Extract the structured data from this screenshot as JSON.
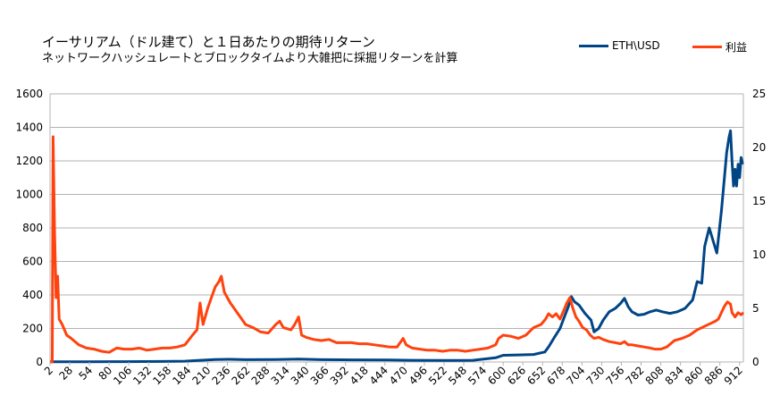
{
  "chart_data": {
    "type": "line",
    "title": "イーサリアム（ドル建て）と１日あたりの期待リターン",
    "subtitle": "ネットワークハッシュレートとブロックタイムより大雑把に採掘リターンを計算",
    "x_tick_labels": [
      "2",
      "28",
      "54",
      "80",
      "106",
      "132",
      "158",
      "184",
      "210",
      "236",
      "262",
      "288",
      "314",
      "340",
      "366",
      "392",
      "418",
      "444",
      "470",
      "496",
      "522",
      "548",
      "574",
      "600",
      "626",
      "652",
      "678",
      "704",
      "730",
      "756",
      "782",
      "808",
      "834",
      "860",
      "886",
      "912"
    ],
    "xlim": [
      2,
      917
    ],
    "y_left": {
      "min": 0,
      "max": 1600,
      "ticks": [
        "0",
        "200",
        "400",
        "600",
        "800",
        "1000",
        "1200",
        "1400",
        "1600"
      ]
    },
    "y_right": {
      "min": 0,
      "max": 25,
      "ticks": [
        "0",
        "5",
        "10",
        "15",
        "20",
        "25"
      ]
    },
    "grid": true,
    "legend_position": "top-right",
    "series": [
      {
        "name": "ETH\\USD",
        "axis": "left",
        "color": "#004586",
        "points": [
          [
            2,
            1
          ],
          [
            50,
            1
          ],
          [
            100,
            2
          ],
          [
            150,
            3
          ],
          [
            180,
            5
          ],
          [
            200,
            10
          ],
          [
            220,
            15
          ],
          [
            240,
            16
          ],
          [
            260,
            14
          ],
          [
            300,
            15
          ],
          [
            330,
            17
          ],
          [
            360,
            14
          ],
          [
            400,
            13
          ],
          [
            450,
            12
          ],
          [
            480,
            10
          ],
          [
            520,
            9
          ],
          [
            560,
            10
          ],
          [
            590,
            25
          ],
          [
            600,
            40
          ],
          [
            620,
            42
          ],
          [
            640,
            45
          ],
          [
            655,
            60
          ],
          [
            660,
            90
          ],
          [
            668,
            150
          ],
          [
            675,
            200
          ],
          [
            680,
            260
          ],
          [
            686,
            330
          ],
          [
            690,
            390
          ],
          [
            694,
            360
          ],
          [
            700,
            340
          ],
          [
            708,
            290
          ],
          [
            716,
            250
          ],
          [
            720,
            180
          ],
          [
            726,
            200
          ],
          [
            732,
            250
          ],
          [
            740,
            300
          ],
          [
            748,
            320
          ],
          [
            755,
            350
          ],
          [
            760,
            380
          ],
          [
            765,
            330
          ],
          [
            770,
            300
          ],
          [
            778,
            280
          ],
          [
            786,
            285
          ],
          [
            794,
            300
          ],
          [
            802,
            310
          ],
          [
            810,
            300
          ],
          [
            820,
            290
          ],
          [
            830,
            300
          ],
          [
            840,
            320
          ],
          [
            850,
            370
          ],
          [
            856,
            480
          ],
          [
            862,
            470
          ],
          [
            866,
            690
          ],
          [
            872,
            800
          ],
          [
            878,
            710
          ],
          [
            882,
            650
          ],
          [
            888,
            900
          ],
          [
            892,
            1100
          ],
          [
            895,
            1250
          ],
          [
            898,
            1340
          ],
          [
            900,
            1380
          ],
          [
            902,
            1200
          ],
          [
            904,
            1050
          ],
          [
            906,
            1150
          ],
          [
            908,
            1050
          ],
          [
            910,
            1180
          ],
          [
            912,
            1100
          ],
          [
            914,
            1220
          ],
          [
            916,
            1180
          ]
        ]
      },
      {
        "name": "利益",
        "axis": "right",
        "color": "#ff420e",
        "points": [
          [
            2,
            0
          ],
          [
            5,
            0
          ],
          [
            6,
            21
          ],
          [
            8,
            12
          ],
          [
            10,
            6
          ],
          [
            12,
            8
          ],
          [
            14,
            4
          ],
          [
            18,
            3.5
          ],
          [
            24,
            2.5
          ],
          [
            30,
            2.2
          ],
          [
            40,
            1.6
          ],
          [
            50,
            1.3
          ],
          [
            60,
            1.2
          ],
          [
            70,
            1.0
          ],
          [
            80,
            0.9
          ],
          [
            90,
            1.3
          ],
          [
            100,
            1.2
          ],
          [
            110,
            1.2
          ],
          [
            120,
            1.3
          ],
          [
            130,
            1.1
          ],
          [
            140,
            1.2
          ],
          [
            150,
            1.3
          ],
          [
            160,
            1.3
          ],
          [
            170,
            1.4
          ],
          [
            180,
            1.6
          ],
          [
            190,
            2.5
          ],
          [
            196,
            3.0
          ],
          [
            200,
            5.5
          ],
          [
            204,
            3.5
          ],
          [
            210,
            5
          ],
          [
            215,
            6
          ],
          [
            220,
            7
          ],
          [
            225,
            7.5
          ],
          [
            228,
            8
          ],
          [
            232,
            6.5
          ],
          [
            236,
            6.0
          ],
          [
            240,
            5.5
          ],
          [
            245,
            5
          ],
          [
            250,
            4.5
          ],
          [
            255,
            4
          ],
          [
            260,
            3.5
          ],
          [
            270,
            3.2
          ],
          [
            280,
            2.8
          ],
          [
            290,
            2.7
          ],
          [
            300,
            3.5
          ],
          [
            305,
            3.8
          ],
          [
            310,
            3.2
          ],
          [
            320,
            3.0
          ],
          [
            325,
            3.5
          ],
          [
            330,
            4.2
          ],
          [
            334,
            2.5
          ],
          [
            340,
            2.3
          ],
          [
            350,
            2.1
          ],
          [
            360,
            2.0
          ],
          [
            370,
            2.1
          ],
          [
            380,
            1.8
          ],
          [
            390,
            1.8
          ],
          [
            400,
            1.8
          ],
          [
            410,
            1.7
          ],
          [
            420,
            1.7
          ],
          [
            430,
            1.6
          ],
          [
            440,
            1.5
          ],
          [
            450,
            1.4
          ],
          [
            460,
            1.4
          ],
          [
            468,
            2.2
          ],
          [
            472,
            1.6
          ],
          [
            480,
            1.3
          ],
          [
            490,
            1.2
          ],
          [
            500,
            1.1
          ],
          [
            510,
            1.1
          ],
          [
            520,
            1.0
          ],
          [
            530,
            1.1
          ],
          [
            540,
            1.1
          ],
          [
            550,
            1.0
          ],
          [
            560,
            1.1
          ],
          [
            570,
            1.2
          ],
          [
            580,
            1.3
          ],
          [
            590,
            1.6
          ],
          [
            594,
            2.2
          ],
          [
            600,
            2.5
          ],
          [
            610,
            2.4
          ],
          [
            620,
            2.2
          ],
          [
            630,
            2.5
          ],
          [
            640,
            3.2
          ],
          [
            650,
            3.5
          ],
          [
            656,
            4.0
          ],
          [
            660,
            4.5
          ],
          [
            665,
            4.2
          ],
          [
            670,
            4.5
          ],
          [
            675,
            4.0
          ],
          [
            680,
            4.8
          ],
          [
            684,
            5.5
          ],
          [
            688,
            6.0
          ],
          [
            692,
            5.0
          ],
          [
            696,
            4.2
          ],
          [
            700,
            3.8
          ],
          [
            705,
            3.2
          ],
          [
            710,
            3.0
          ],
          [
            715,
            2.5
          ],
          [
            720,
            2.2
          ],
          [
            726,
            2.3
          ],
          [
            732,
            2.1
          ],
          [
            740,
            1.9
          ],
          [
            748,
            1.8
          ],
          [
            755,
            1.7
          ],
          [
            760,
            1.9
          ],
          [
            765,
            1.6
          ],
          [
            770,
            1.6
          ],
          [
            778,
            1.5
          ],
          [
            786,
            1.4
          ],
          [
            794,
            1.3
          ],
          [
            800,
            1.2
          ],
          [
            808,
            1.2
          ],
          [
            816,
            1.4
          ],
          [
            826,
            2.0
          ],
          [
            836,
            2.2
          ],
          [
            846,
            2.5
          ],
          [
            856,
            3.0
          ],
          [
            862,
            3.2
          ],
          [
            868,
            3.4
          ],
          [
            874,
            3.6
          ],
          [
            880,
            3.8
          ],
          [
            884,
            4.0
          ],
          [
            888,
            4.6
          ],
          [
            892,
            5.2
          ],
          [
            896,
            5.6
          ],
          [
            900,
            5.4
          ],
          [
            902,
            4.6
          ],
          [
            906,
            4.2
          ],
          [
            910,
            4.6
          ],
          [
            914,
            4.4
          ],
          [
            917,
            4.6
          ]
        ]
      }
    ]
  }
}
